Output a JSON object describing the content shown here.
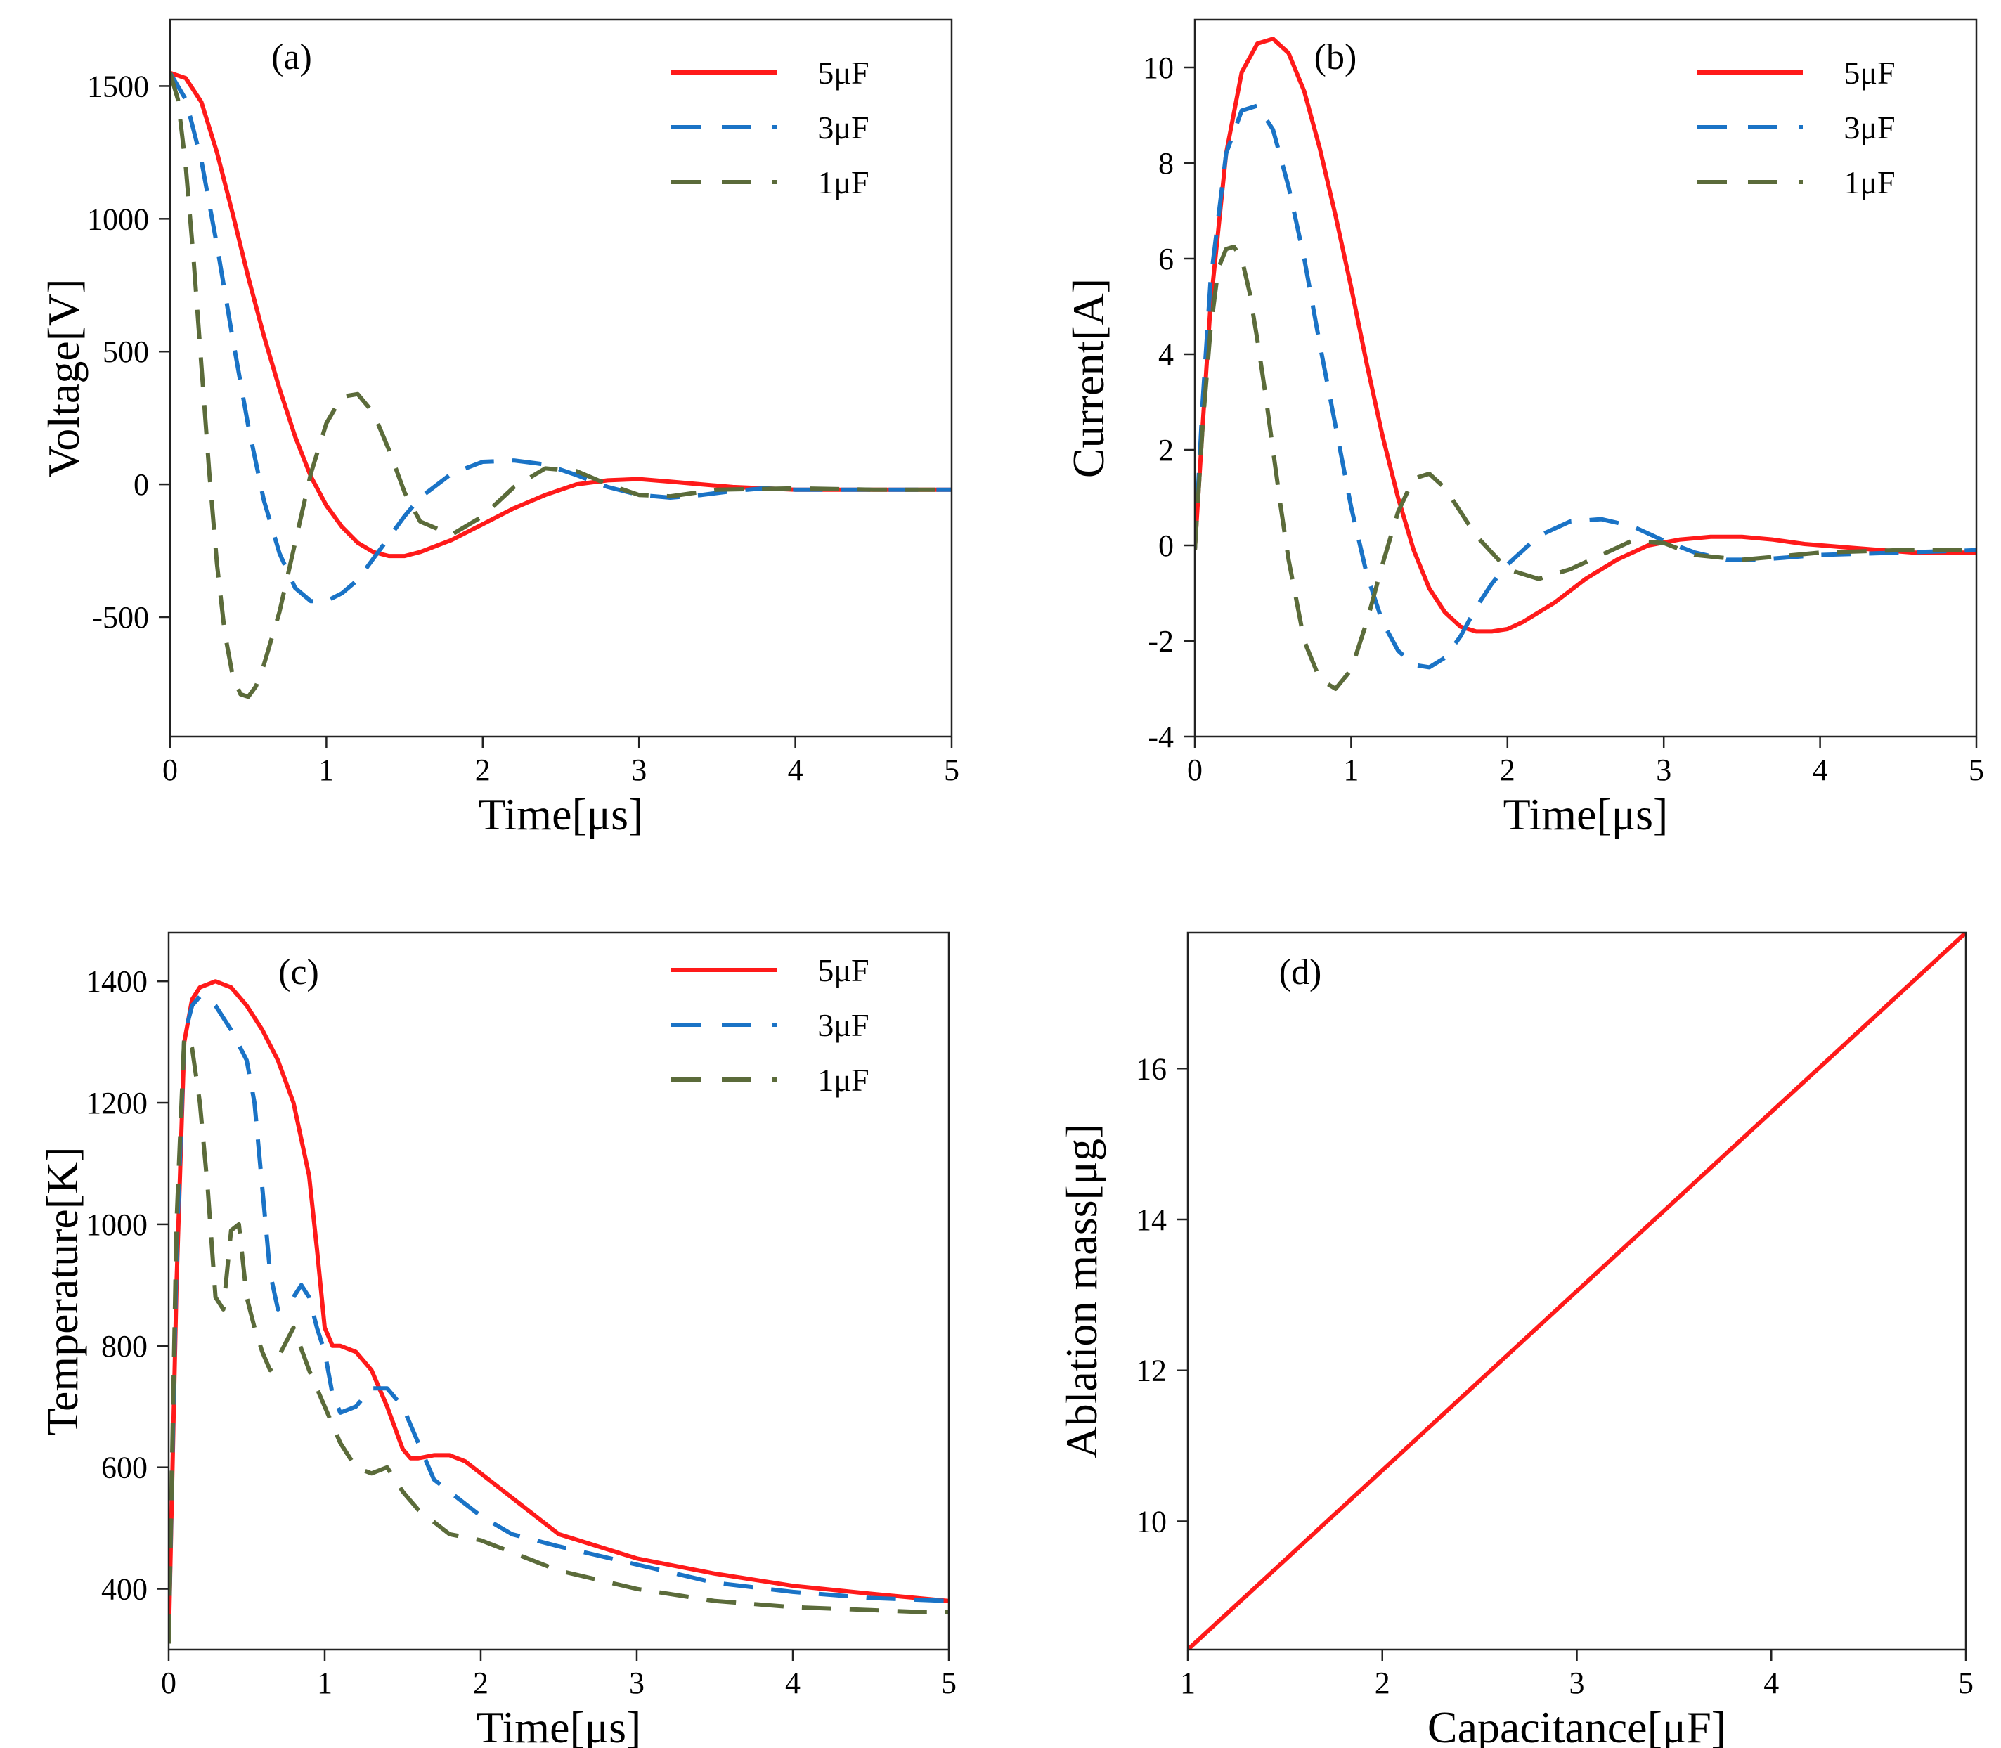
{
  "figure": {
    "background": "#ffffff"
  },
  "colors": {
    "c5": "#ff1a1a",
    "c3": "#1a73c6",
    "c1": "#5b6b3a"
  },
  "chart_data": [
    {
      "id": "a",
      "type": "line",
      "panel_label": "(a)",
      "xlabel": "Time[μs]",
      "ylabel": "Voltage[V]",
      "xlim": [
        0,
        5
      ],
      "ylim": [
        -950,
        1750
      ],
      "xticks": [
        0,
        1,
        2,
        3,
        4,
        5
      ],
      "yticks": [
        -500,
        0,
        500,
        1000,
        1500
      ],
      "legend": {
        "location": "top-right"
      },
      "series": [
        {
          "name": "5μF",
          "style": "solid",
          "color_key": "c5",
          "x": [
            0,
            0.1,
            0.2,
            0.3,
            0.4,
            0.5,
            0.6,
            0.7,
            0.8,
            0.9,
            1.0,
            1.1,
            1.2,
            1.3,
            1.4,
            1.5,
            1.6,
            1.8,
            2.0,
            2.2,
            2.4,
            2.6,
            2.8,
            3.0,
            3.2,
            3.4,
            3.6,
            3.8,
            4.0,
            4.4,
            5.0
          ],
          "y": [
            1550,
            1530,
            1440,
            1250,
            1020,
            780,
            560,
            360,
            180,
            30,
            -80,
            -160,
            -220,
            -255,
            -270,
            -270,
            -255,
            -210,
            -150,
            -90,
            -40,
            0,
            15,
            20,
            10,
            0,
            -10,
            -15,
            -20,
            -20,
            -20
          ]
        },
        {
          "name": "3μF",
          "style": "dashed",
          "color_key": "c3",
          "x": [
            0,
            0.1,
            0.2,
            0.3,
            0.4,
            0.5,
            0.6,
            0.7,
            0.8,
            0.9,
            1.0,
            1.1,
            1.2,
            1.3,
            1.4,
            1.5,
            1.6,
            1.8,
            2.0,
            2.2,
            2.4,
            2.6,
            2.8,
            3.0,
            3.2,
            3.4,
            3.6,
            3.8,
            4.0,
            4.5,
            5.0
          ],
          "y": [
            1550,
            1450,
            1220,
            900,
            550,
            220,
            -60,
            -260,
            -390,
            -440,
            -440,
            -410,
            -360,
            -280,
            -200,
            -120,
            -50,
            40,
            85,
            90,
            75,
            35,
            -10,
            -40,
            -50,
            -40,
            -25,
            -15,
            -20,
            -20,
            -20
          ]
        },
        {
          "name": "1μF",
          "style": "dashed",
          "color_key": "c1",
          "x": [
            0,
            0.05,
            0.1,
            0.15,
            0.2,
            0.25,
            0.3,
            0.35,
            0.4,
            0.45,
            0.5,
            0.55,
            0.6,
            0.7,
            0.8,
            0.9,
            1.0,
            1.1,
            1.2,
            1.3,
            1.4,
            1.5,
            1.6,
            1.8,
            2.0,
            2.2,
            2.4,
            2.6,
            2.8,
            3.0,
            3.2,
            3.5,
            4.0,
            4.5,
            5.0
          ],
          "y": [
            1550,
            1450,
            1200,
            850,
            450,
            50,
            -300,
            -560,
            -720,
            -790,
            -800,
            -760,
            -680,
            -480,
            -220,
            40,
            230,
            330,
            340,
            270,
            130,
            -30,
            -140,
            -190,
            -120,
            -10,
            60,
            50,
            0,
            -40,
            -45,
            -20,
            -15,
            -20,
            -20
          ]
        }
      ]
    },
    {
      "id": "b",
      "type": "line",
      "panel_label": "(b)",
      "xlabel": "Time[μs]",
      "ylabel": "Current[A]",
      "xlim": [
        0,
        5
      ],
      "ylim": [
        -4,
        11
      ],
      "xticks": [
        0,
        1,
        2,
        3,
        4,
        5
      ],
      "yticks": [
        -4,
        -2,
        0,
        2,
        4,
        6,
        8,
        10
      ],
      "legend": {
        "location": "top-right"
      },
      "series": [
        {
          "name": "5μF",
          "style": "solid",
          "color_key": "c5",
          "x": [
            0,
            0.05,
            0.1,
            0.2,
            0.3,
            0.4,
            0.5,
            0.6,
            0.7,
            0.8,
            0.9,
            1.0,
            1.1,
            1.2,
            1.3,
            1.4,
            1.5,
            1.6,
            1.7,
            1.8,
            1.9,
            2.0,
            2.1,
            2.3,
            2.5,
            2.7,
            2.9,
            3.1,
            3.3,
            3.5,
            3.7,
            3.9,
            4.2,
            4.6,
            5.0
          ],
          "y": [
            -0.1,
            2.5,
            5.0,
            8.2,
            9.9,
            10.5,
            10.6,
            10.3,
            9.5,
            8.3,
            6.9,
            5.4,
            3.8,
            2.3,
            1.0,
            -0.1,
            -0.9,
            -1.4,
            -1.7,
            -1.8,
            -1.8,
            -1.75,
            -1.6,
            -1.2,
            -0.7,
            -0.3,
            0,
            0.12,
            0.18,
            0.18,
            0.12,
            0.03,
            -0.05,
            -0.15,
            -0.15
          ]
        },
        {
          "name": "3μF",
          "style": "dashed",
          "color_key": "c3",
          "x": [
            0,
            0.05,
            0.1,
            0.2,
            0.3,
            0.4,
            0.5,
            0.6,
            0.7,
            0.8,
            0.9,
            1.0,
            1.1,
            1.2,
            1.3,
            1.4,
            1.5,
            1.6,
            1.7,
            1.8,
            1.9,
            2.0,
            2.2,
            2.4,
            2.6,
            2.8,
            3.0,
            3.2,
            3.4,
            3.6,
            3.8,
            4.0,
            4.5,
            5.0
          ],
          "y": [
            -0.1,
            3.0,
            5.5,
            8.2,
            9.1,
            9.2,
            8.7,
            7.5,
            6.0,
            4.2,
            2.5,
            0.8,
            -0.6,
            -1.6,
            -2.2,
            -2.5,
            -2.55,
            -2.35,
            -1.9,
            -1.3,
            -0.8,
            -0.4,
            0.2,
            0.5,
            0.55,
            0.4,
            0.1,
            -0.15,
            -0.3,
            -0.3,
            -0.25,
            -0.2,
            -0.15,
            -0.1
          ]
        },
        {
          "name": "1μF",
          "style": "dashed",
          "color_key": "c1",
          "x": [
            0,
            0.05,
            0.1,
            0.15,
            0.2,
            0.25,
            0.3,
            0.35,
            0.4,
            0.45,
            0.5,
            0.55,
            0.6,
            0.7,
            0.8,
            0.9,
            1.0,
            1.1,
            1.2,
            1.3,
            1.4,
            1.5,
            1.6,
            1.7,
            1.8,
            2.0,
            2.2,
            2.4,
            2.6,
            2.8,
            3.0,
            3.2,
            3.5,
            4.0,
            4.5,
            5.0
          ],
          "y": [
            -0.1,
            2.5,
            4.5,
            5.8,
            6.2,
            6.25,
            6.0,
            5.3,
            4.3,
            3.2,
            2.0,
            0.8,
            -0.3,
            -2.0,
            -2.8,
            -3.0,
            -2.6,
            -1.6,
            -0.4,
            0.7,
            1.4,
            1.5,
            1.2,
            0.7,
            0.2,
            -0.5,
            -0.7,
            -0.5,
            -0.2,
            0.1,
            0.05,
            -0.2,
            -0.3,
            -0.15,
            -0.1,
            -0.1
          ]
        }
      ]
    },
    {
      "id": "c",
      "type": "line",
      "panel_label": "(c)",
      "xlabel": "Time[μs]",
      "ylabel": "Temperature[K]",
      "xlim": [
        0,
        5
      ],
      "ylim": [
        300,
        1480
      ],
      "xticks": [
        0,
        1,
        2,
        3,
        4,
        5
      ],
      "yticks": [
        400,
        600,
        800,
        1000,
        1200,
        1400
      ],
      "legend": {
        "location": "top-right"
      },
      "series": [
        {
          "name": "5μF",
          "style": "solid",
          "color_key": "c5",
          "x": [
            0,
            0.05,
            0.1,
            0.15,
            0.2,
            0.3,
            0.4,
            0.5,
            0.6,
            0.7,
            0.8,
            0.9,
            0.95,
            1.0,
            1.05,
            1.1,
            1.2,
            1.3,
            1.4,
            1.5,
            1.55,
            1.6,
            1.7,
            1.8,
            1.9,
            2.0,
            2.2,
            2.5,
            3.0,
            3.5,
            4.0,
            4.5,
            5.0
          ],
          "y": [
            310,
            900,
            1300,
            1370,
            1390,
            1400,
            1390,
            1360,
            1320,
            1270,
            1200,
            1080,
            960,
            830,
            800,
            800,
            790,
            760,
            700,
            630,
            615,
            615,
            620,
            620,
            610,
            590,
            550,
            490,
            450,
            425,
            405,
            392,
            380
          ]
        },
        {
          "name": "3μF",
          "style": "dashed",
          "color_key": "c3",
          "x": [
            0,
            0.05,
            0.1,
            0.15,
            0.2,
            0.25,
            0.3,
            0.4,
            0.5,
            0.55,
            0.6,
            0.65,
            0.7,
            0.8,
            0.85,
            0.9,
            0.95,
            1.0,
            1.05,
            1.1,
            1.2,
            1.3,
            1.4,
            1.5,
            1.6,
            1.7,
            1.8,
            2.0,
            2.2,
            2.5,
            3.0,
            3.5,
            4.0,
            4.5,
            5.0
          ],
          "y": [
            310,
            950,
            1310,
            1360,
            1375,
            1370,
            1360,
            1320,
            1270,
            1200,
            1060,
            920,
            860,
            880,
            900,
            880,
            830,
            790,
            720,
            690,
            700,
            730,
            730,
            700,
            640,
            580,
            560,
            520,
            490,
            470,
            440,
            410,
            395,
            385,
            380
          ]
        },
        {
          "name": "1μF",
          "style": "dashed",
          "color_key": "c1",
          "x": [
            0,
            0.05,
            0.1,
            0.15,
            0.2,
            0.25,
            0.3,
            0.35,
            0.4,
            0.45,
            0.5,
            0.55,
            0.6,
            0.65,
            0.7,
            0.8,
            0.9,
            1.0,
            1.1,
            1.2,
            1.3,
            1.4,
            1.5,
            1.6,
            1.8,
            2.0,
            2.2,
            2.5,
            3.0,
            3.5,
            4.0,
            4.5,
            4.8,
            5.0
          ],
          "y": [
            310,
            1000,
            1310,
            1290,
            1200,
            1060,
            880,
            860,
            990,
            1000,
            880,
            830,
            790,
            760,
            780,
            830,
            760,
            700,
            640,
            600,
            590,
            600,
            560,
            530,
            490,
            480,
            460,
            430,
            400,
            380,
            370,
            365,
            362,
            362
          ]
        }
      ]
    },
    {
      "id": "d",
      "type": "line",
      "panel_label": "(d)",
      "xlabel": "Capacitance[μF]",
      "ylabel": "Ablation mass[μg]",
      "xlim": [
        1,
        5
      ],
      "ylim": [
        8.3,
        17.8
      ],
      "xticks": [
        1,
        2,
        3,
        4,
        5
      ],
      "yticks": [
        10,
        12,
        14,
        16
      ],
      "legend": null,
      "series": [
        {
          "name": "Ablation mass",
          "style": "solid",
          "color_key": "c5",
          "x": [
            1,
            5
          ],
          "y": [
            8.3,
            17.8
          ]
        }
      ]
    }
  ]
}
